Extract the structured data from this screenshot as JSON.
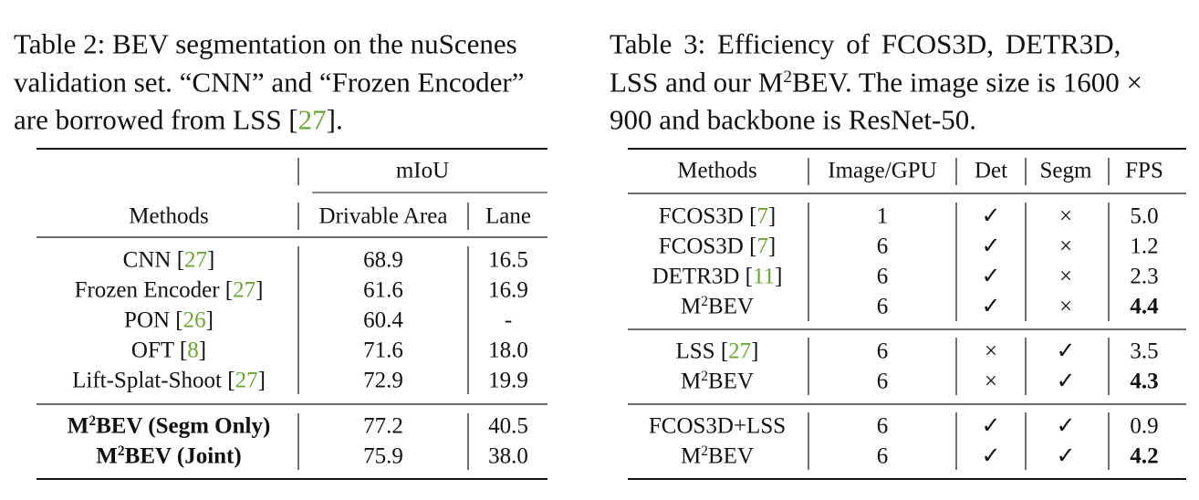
{
  "table2": {
    "caption": [
      [
        "Table 2:",
        " BEV segmentation on the nuScenes"
      ],
      [
        "validation set. “CNN” and “Frozen Encoder”"
      ],
      [
        "are borrowed from LSS [",
        {
          "cite": "27"
        },
        "]."
      ]
    ],
    "group_header": "mIoU",
    "columns": [
      "Methods",
      "Drivable Area",
      "Lane"
    ],
    "groups": [
      [
        {
          "method": [
            "CNN [",
            {
              "cite": "27"
            },
            "]"
          ],
          "values": [
            "68.9",
            "16.5"
          ]
        },
        {
          "method": [
            "Frozen Encoder [",
            {
              "cite": "27"
            },
            "]"
          ],
          "values": [
            "61.6",
            "16.9"
          ]
        },
        {
          "method": [
            "PON [",
            {
              "cite": "26"
            },
            "]"
          ],
          "values": [
            "60.4",
            "-"
          ]
        },
        {
          "method": [
            "OFT [",
            {
              "cite": "8"
            },
            "]"
          ],
          "values": [
            "71.6",
            "18.0"
          ]
        },
        {
          "method": [
            "Lift-Splat-Shoot [",
            {
              "cite": "27"
            },
            "]"
          ],
          "values": [
            "72.9",
            "19.9"
          ]
        }
      ],
      [
        {
          "method": [
            "M",
            {
              "sup": "2"
            },
            "BEV (Segm Only)"
          ],
          "values": [
            "77.2",
            "40.5"
          ],
          "bold": true
        },
        {
          "method": [
            "M",
            {
              "sup": "2"
            },
            "BEV (Joint)"
          ],
          "values": [
            "75.9",
            "38.0"
          ],
          "bold": true
        }
      ]
    ]
  },
  "table3": {
    "caption": [
      [
        "Table 3:",
        " Efficiency of FCOS3D, DETR3D,"
      ],
      [
        "LSS and our M",
        {
          "sup": "2"
        },
        "BEV. The image size is 1600 ×"
      ],
      [
        "900 and backbone is ResNet-50."
      ]
    ],
    "columns": [
      "Methods",
      "Image/GPU",
      "Det",
      "Segm",
      "FPS"
    ],
    "groups": [
      [
        {
          "method": [
            "FCOS3D [",
            {
              "cite": "7"
            },
            "]"
          ],
          "values": [
            "1",
            "✓",
            "×",
            "5.0"
          ]
        },
        {
          "method": [
            "FCOS3D [",
            {
              "cite": "7"
            },
            "]"
          ],
          "values": [
            "6",
            "✓",
            "×",
            "1.2"
          ]
        },
        {
          "method": [
            "DETR3D [",
            {
              "cite": "11"
            },
            "]"
          ],
          "values": [
            "6",
            "✓",
            "×",
            "2.3"
          ]
        },
        {
          "method": [
            "M",
            {
              "sup": "2"
            },
            "BEV"
          ],
          "values": [
            "6",
            "✓",
            "×",
            {
              "bold": "4.4"
            }
          ]
        }
      ],
      [
        {
          "method": [
            "LSS [",
            {
              "cite": "27"
            },
            "]"
          ],
          "values": [
            "6",
            "×",
            "✓",
            "3.5"
          ]
        },
        {
          "method": [
            "M",
            {
              "sup": "2"
            },
            "BEV"
          ],
          "values": [
            "6",
            "×",
            "✓",
            {
              "bold": "4.3"
            }
          ]
        }
      ],
      [
        {
          "method": [
            "FCOS3D+LSS"
          ],
          "values": [
            "6",
            "✓",
            "✓",
            "0.9"
          ]
        },
        {
          "method": [
            "M",
            {
              "sup": "2"
            },
            "BEV"
          ],
          "values": [
            "6",
            "✓",
            "✓",
            {
              "bold": "4.2"
            }
          ]
        }
      ]
    ]
  }
}
